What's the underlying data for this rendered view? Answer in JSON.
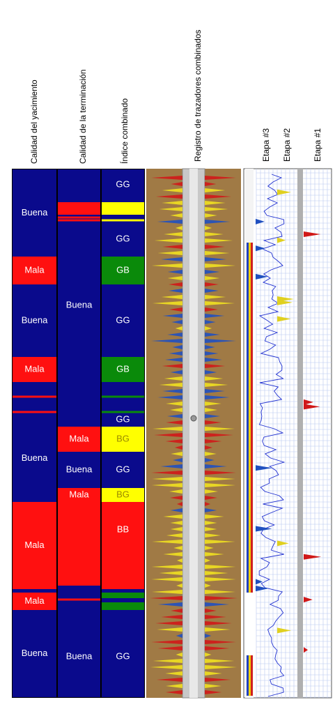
{
  "columns": [
    {
      "title": "Calidad del yacimiento",
      "labels": [
        "Buena",
        "Mala",
        "Buena",
        "Mala",
        "Buena",
        "Mala",
        "Mala",
        "Buena"
      ]
    },
    {
      "title": "Calidad de la terminación",
      "labels": [
        "Buena",
        "Mala",
        "Buena",
        "Mala",
        "Buena"
      ]
    },
    {
      "title": "Índice combinado",
      "labels": [
        "GG",
        "GG",
        "GB",
        "GG",
        "GB",
        "GG",
        "BG",
        "GG",
        "BG",
        "BB",
        "GG"
      ]
    }
  ],
  "log": {
    "title": "Registro de trazadores combinados"
  },
  "stages": [
    "Etapa #3",
    "Etapa #2",
    "Etapa #1"
  ]
}
